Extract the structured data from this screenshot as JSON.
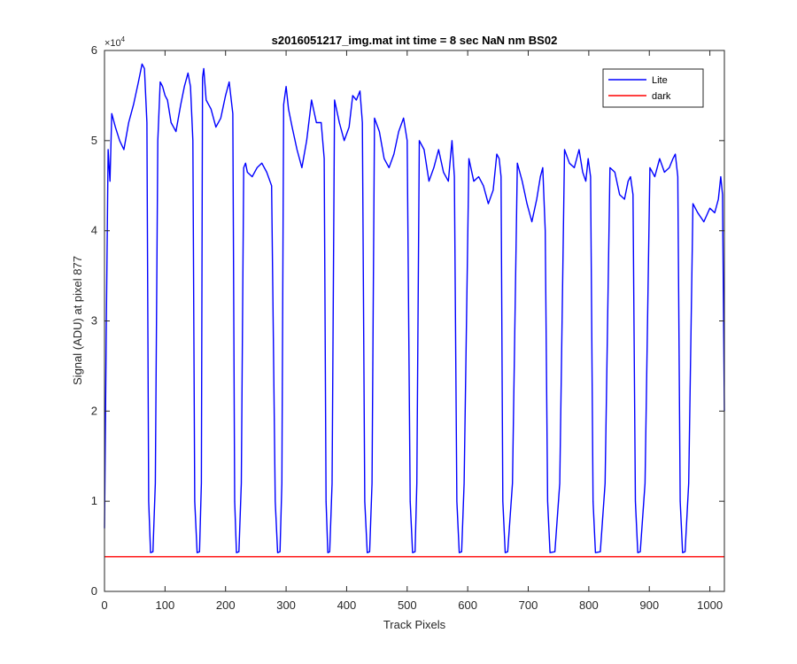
{
  "chart_data": {
    "type": "line",
    "title": "s2016051217_img.mat int time = 8 sec  NaN nm BS02",
    "xlabel": "Track Pixels",
    "ylabel": "Signal (ADU) at pixel 877",
    "xlim": [
      0,
      1024
    ],
    "ylim": [
      0,
      60000
    ],
    "y_exponent_label": "×10",
    "y_exponent_power": "4",
    "x_ticks": [
      0,
      100,
      200,
      300,
      400,
      500,
      600,
      700,
      800,
      900,
      1000
    ],
    "x_tick_labels": [
      "0",
      "100",
      "200",
      "300",
      "400",
      "500",
      "600",
      "700",
      "800",
      "900",
      "1000"
    ],
    "y_ticks": [
      0,
      10000,
      20000,
      30000,
      40000,
      50000,
      60000
    ],
    "y_tick_labels": [
      "0",
      "1",
      "2",
      "3",
      "4",
      "5",
      "6"
    ],
    "grid": false,
    "legend": {
      "placement": "top-right",
      "entries": [
        "Lite",
        "dark"
      ]
    },
    "series": [
      {
        "name": "Lite",
        "color": "#0000ff",
        "x": [
          0,
          3,
          6,
          9,
          12,
          18,
          25,
          32,
          40,
          48,
          56,
          62,
          66,
          70,
          73,
          76,
          80,
          84,
          88,
          92,
          96,
          100,
          104,
          110,
          118,
          126,
          132,
          138,
          142,
          146,
          149,
          153,
          157,
          160,
          162,
          164,
          168,
          176,
          184,
          192,
          200,
          206,
          212,
          215,
          218,
          222,
          226,
          230,
          233,
          236,
          244,
          252,
          260,
          268,
          276,
          282,
          286,
          290,
          293,
          296,
          300,
          304,
          310,
          318,
          326,
          334,
          342,
          350,
          358,
          363,
          366,
          369,
          372,
          376,
          380,
          388,
          396,
          404,
          410,
          416,
          422,
          426,
          430,
          434,
          438,
          442,
          446,
          454,
          462,
          470,
          478,
          486,
          494,
          500,
          505,
          509,
          513,
          516,
          520,
          528,
          536,
          544,
          552,
          560,
          568,
          574,
          578,
          582,
          586,
          590,
          594,
          602,
          610,
          618,
          626,
          634,
          642,
          648,
          652,
          655,
          658,
          662,
          666,
          674,
          682,
          690,
          698,
          706,
          714,
          720,
          724,
          728,
          732,
          736,
          744,
          752,
          760,
          768,
          776,
          784,
          790,
          795,
          799,
          803,
          807,
          811,
          819,
          827,
          835,
          843,
          851,
          859,
          865,
          869,
          873,
          877,
          881,
          885,
          893,
          901,
          909,
          917,
          925,
          933,
          939,
          943,
          947,
          951,
          955,
          959,
          965,
          972,
          980,
          990,
          1000,
          1008,
          1014,
          1018,
          1021,
          1024
        ],
        "y": [
          7000,
          30000,
          49000,
          45500,
          53000,
          51500,
          50000,
          49000,
          52000,
          54000,
          56500,
          58500,
          58000,
          52000,
          10000,
          4300,
          4400,
          12000,
          50000,
          56500,
          56000,
          55000,
          54500,
          52000,
          51000,
          54000,
          56000,
          57500,
          56000,
          50000,
          10000,
          4300,
          4400,
          12000,
          57000,
          58000,
          54500,
          53500,
          51500,
          52500,
          55000,
          56500,
          53000,
          10000,
          4300,
          4400,
          12000,
          47000,
          47500,
          46500,
          46000,
          47000,
          47500,
          46500,
          45000,
          10000,
          4300,
          4400,
          12000,
          54000,
          56000,
          53500,
          51500,
          49000,
          47000,
          50000,
          54500,
          52000,
          52000,
          48000,
          10000,
          4300,
          4400,
          12000,
          54500,
          52000,
          50000,
          51500,
          55000,
          54500,
          55500,
          52000,
          10000,
          4300,
          4400,
          12000,
          52500,
          51000,
          48000,
          47000,
          48500,
          51000,
          52500,
          50000,
          10000,
          4300,
          4400,
          12000,
          50000,
          49000,
          45500,
          47000,
          49000,
          46500,
          45500,
          50000,
          46000,
          10000,
          4300,
          4400,
          12000,
          48000,
          45500,
          46000,
          45000,
          43000,
          44500,
          48500,
          48000,
          46000,
          10000,
          4300,
          4400,
          12000,
          47500,
          45500,
          43000,
          41000,
          43500,
          46000,
          47000,
          40000,
          10000,
          4300,
          4400,
          12000,
          49000,
          47500,
          47000,
          49000,
          46500,
          45500,
          48000,
          46000,
          10000,
          4300,
          4400,
          12000,
          47000,
          46500,
          44000,
          43500,
          45500,
          46000,
          44000,
          10000,
          4300,
          4400,
          12000,
          47000,
          46000,
          48000,
          46500,
          47000,
          48000,
          48500,
          46000,
          10000,
          4300,
          4400,
          12000,
          43000,
          42000,
          41000,
          42500,
          42000,
          43500,
          46000,
          44000,
          20000
        ]
      },
      {
        "name": "dark",
        "color": "#ff0000",
        "x": [
          0,
          1024
        ],
        "y": [
          3850,
          3850
        ]
      }
    ]
  }
}
